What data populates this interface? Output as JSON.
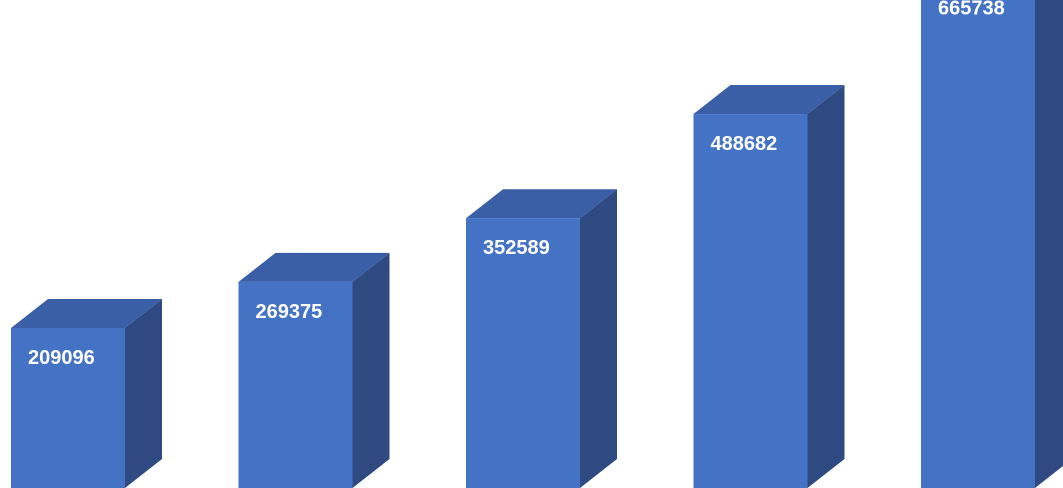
{
  "chart_data": {
    "type": "bar",
    "style": "3d-column",
    "categories": [
      "",
      "",
      "",
      "",
      ""
    ],
    "values": [
      209096,
      269375,
      352589,
      488682,
      665738
    ],
    "labels": [
      "209096",
      "269375",
      "352589",
      "488682",
      "665738"
    ],
    "title": "",
    "xlabel": "",
    "ylabel": "",
    "grid": false,
    "legend": "none",
    "colors": {
      "front": "#4472c4",
      "side": "#2e4a80",
      "top": "#3a5fa6",
      "label": "#ffffff",
      "background": "#ffffff"
    }
  }
}
